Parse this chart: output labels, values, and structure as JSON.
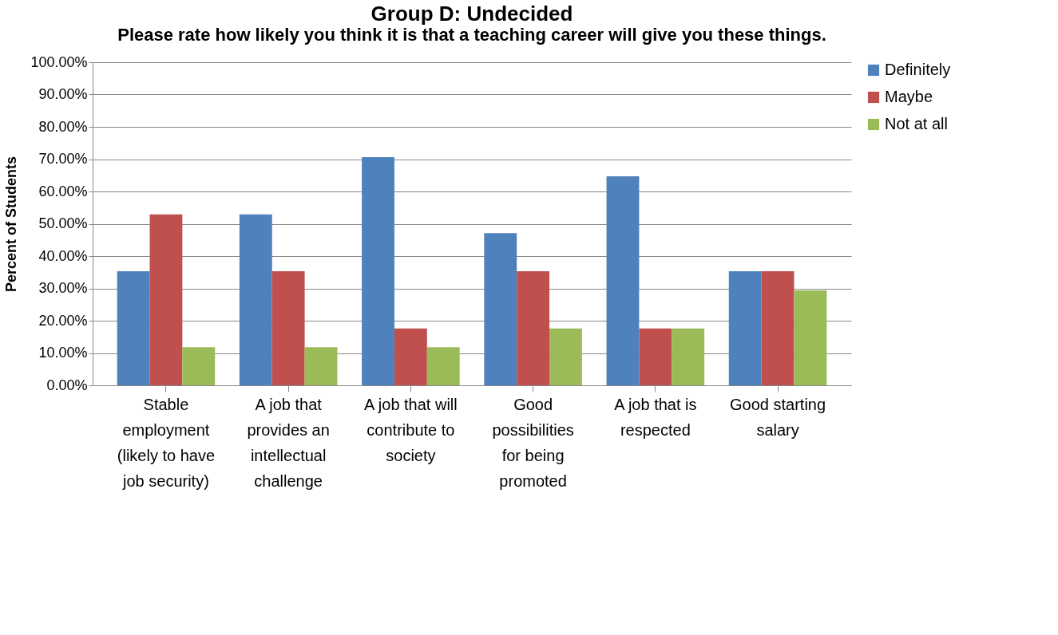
{
  "chart_data": {
    "type": "bar",
    "title": "Group D: Undecided",
    "subtitle": "Please rate how likely you think it is that a teaching career will give you these things.",
    "ylabel": "Percent of Students",
    "categories": [
      "Stable employment (likely to have job security)",
      "A job that provides an intellectual challenge",
      "A job that will contribute to society",
      "Good possibilities for being promoted",
      "A job that is respected",
      "Good starting salary"
    ],
    "series": [
      {
        "name": "Definitely",
        "color": "#4f81bd",
        "values": [
          35.3,
          52.9,
          70.6,
          47.1,
          64.7,
          35.3
        ]
      },
      {
        "name": "Maybe",
        "color": "#c0504d",
        "values": [
          52.9,
          35.3,
          17.6,
          35.3,
          17.6,
          35.3
        ]
      },
      {
        "name": "Not at all",
        "color": "#9bbb59",
        "values": [
          11.8,
          11.8,
          11.8,
          17.6,
          17.6,
          29.4
        ]
      }
    ],
    "ylim": [
      0,
      100
    ],
    "yticks": [
      {
        "value": 0,
        "label": "0.00%"
      },
      {
        "value": 10,
        "label": "10.00%"
      },
      {
        "value": 20,
        "label": "20.00%"
      },
      {
        "value": 30,
        "label": "30.00%"
      },
      {
        "value": 40,
        "label": "40.00%"
      },
      {
        "value": 50,
        "label": "50.00%"
      },
      {
        "value": 60,
        "label": "60.00%"
      },
      {
        "value": 70,
        "label": "70.00%"
      },
      {
        "value": 80,
        "label": "80.00%"
      },
      {
        "value": 90,
        "label": "90.00%"
      },
      {
        "value": 100,
        "label": "100.00%"
      }
    ],
    "grid": "y",
    "legend": "right"
  }
}
